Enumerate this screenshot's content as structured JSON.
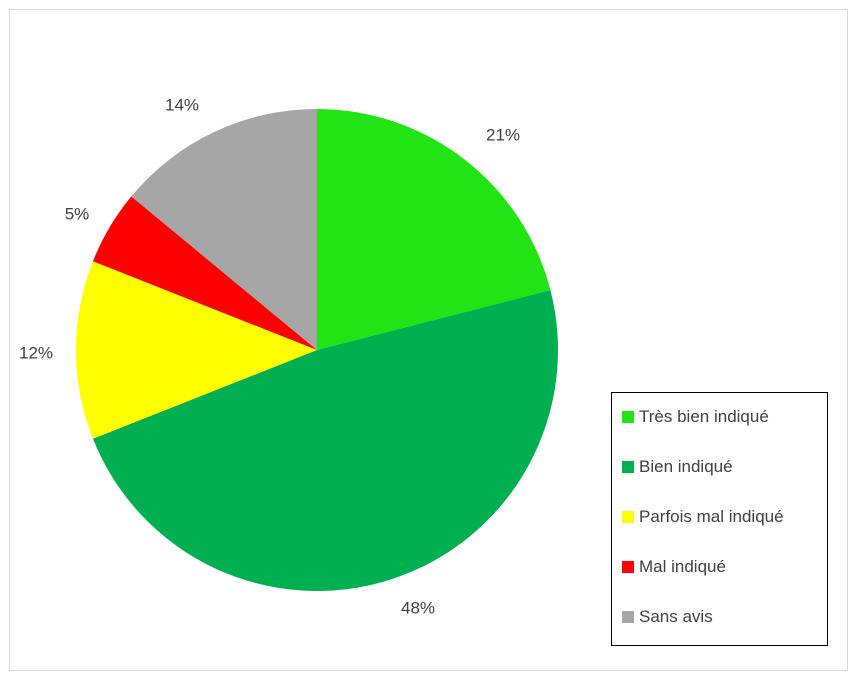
{
  "chart_data": {
    "type": "pie",
    "categories": [
      "Très bien indiqué",
      "Bien indiqué",
      "Parfois mal indiqué",
      "Mal indiqué",
      "Sans avis"
    ],
    "values": [
      21,
      48,
      12,
      5,
      14
    ],
    "labels": [
      "21%",
      "48%",
      "12%",
      "5%",
      "14%"
    ],
    "colors": [
      "#22e314",
      "#00b050",
      "#ffff00",
      "#ff0000",
      "#a6a6a6"
    ],
    "legend_position": "right"
  }
}
